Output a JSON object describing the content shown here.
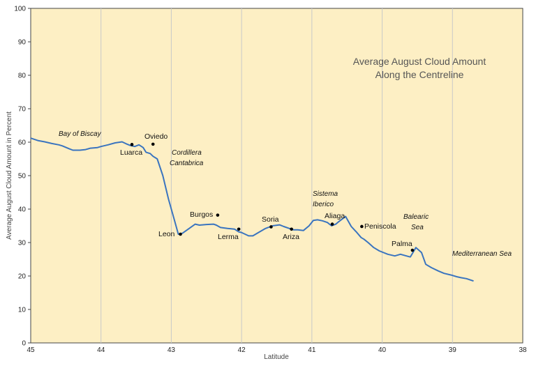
{
  "chart_data": {
    "type": "line",
    "title": [
      "Average August Cloud Amount",
      "Along the Centreline"
    ],
    "xlabel": "Latitude",
    "ylabel": "Average August Cloud Amount in Percent",
    "xlim": [
      45,
      38
    ],
    "ylim": [
      0,
      100
    ],
    "x_reversed": true,
    "grid": "vertical",
    "x_ticks": [
      "45",
      "44",
      "43",
      "42",
      "41",
      "40",
      "39",
      "38"
    ],
    "y_ticks": [
      "0",
      "10",
      "20",
      "30",
      "40",
      "50",
      "60",
      "70",
      "80",
      "90",
      "100"
    ],
    "colors": {
      "line": "#3a74bf",
      "background": "#fdefc4",
      "grid": "#c9c9c9",
      "marker": "#000000"
    },
    "series": [
      {
        "x": [
          45.0,
          44.9,
          44.8,
          44.7,
          44.6,
          44.55,
          44.45,
          44.4,
          44.3,
          44.22,
          44.15,
          44.05,
          44.0,
          43.9,
          43.8,
          43.7,
          43.64,
          43.58,
          43.52,
          43.46,
          43.4,
          43.36,
          43.3,
          43.26,
          43.2,
          43.12,
          43.04,
          42.96,
          42.9,
          42.84,
          42.76,
          42.66,
          42.6,
          42.5,
          42.4,
          42.36,
          42.3,
          42.2,
          42.1,
          42.04,
          42.0,
          41.9,
          41.84,
          41.76,
          41.66,
          41.56,
          41.46,
          41.4,
          41.32,
          41.26,
          41.2,
          41.12,
          41.04,
          40.98,
          40.92,
          40.85,
          40.78,
          40.72,
          40.66,
          40.62,
          40.52,
          40.44,
          40.36,
          40.3,
          40.26,
          40.2,
          40.12,
          40.04,
          39.92,
          39.82,
          39.74,
          39.62,
          39.6,
          39.52,
          39.44,
          39.38,
          39.3,
          39.2,
          39.12,
          39.02,
          38.94,
          38.88,
          38.8,
          38.7
        ],
        "y": [
          61.2,
          60.5,
          60.1,
          59.6,
          59.2,
          58.9,
          58.0,
          57.6,
          57.6,
          57.8,
          58.2,
          58.4,
          58.7,
          59.2,
          59.8,
          60.1,
          59.5,
          59.0,
          58.7,
          59.2,
          58.4,
          57.0,
          56.6,
          55.8,
          55.0,
          50.0,
          43.0,
          37.0,
          32.5,
          32.8,
          34.0,
          35.5,
          35.2,
          35.4,
          35.5,
          35.2,
          34.5,
          34.2,
          34.0,
          33.2,
          33.0,
          32.0,
          32.0,
          33.0,
          34.2,
          35.0,
          35.3,
          34.8,
          34.2,
          33.8,
          33.8,
          33.6,
          35.0,
          36.6,
          36.8,
          36.5,
          36.0,
          35.0,
          35.5,
          36.2,
          37.8,
          34.8,
          33.0,
          31.5,
          31.0,
          30.0,
          28.5,
          27.5,
          26.5,
          26.0,
          26.5,
          25.8,
          25.7,
          28.5,
          27.0,
          23.5,
          22.5,
          21.5,
          20.8,
          20.3,
          19.8,
          19.5,
          19.2,
          18.5
        ]
      }
    ],
    "places": [
      {
        "name": "Luarca",
        "x": 43.56,
        "y": 59.3
      },
      {
        "name": "Oviedo",
        "x": 43.26,
        "y": 59.4
      },
      {
        "name": "Leon",
        "x": 42.87,
        "y": 32.5
      },
      {
        "name": "Burgos",
        "x": 42.34,
        "y": 38.2
      },
      {
        "name": "Lerma",
        "x": 42.04,
        "y": 34.0
      },
      {
        "name": "Soria",
        "x": 41.58,
        "y": 34.7
      },
      {
        "name": "Ariza",
        "x": 41.29,
        "y": 34.0
      },
      {
        "name": "Aliaga",
        "x": 40.71,
        "y": 35.5
      },
      {
        "name": "Peniscola",
        "x": 40.29,
        "y": 34.8
      },
      {
        "name": "Palma",
        "x": 39.57,
        "y": 27.7
      }
    ],
    "regions": {
      "bay_of_biscay": "Bay of Biscay",
      "cordillera": [
        "Cordillera",
        "Cantabrica"
      ],
      "sistema": [
        "Sistema",
        "Iberico"
      ],
      "balearic": [
        "Balearic",
        "Sea"
      ],
      "mediterranean": "Mediterranean Sea"
    }
  }
}
